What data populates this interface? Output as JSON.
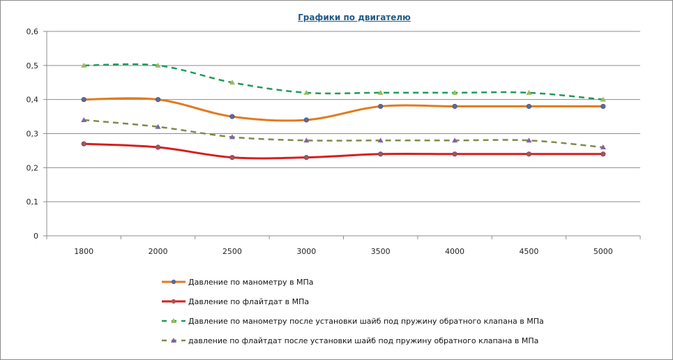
{
  "chart_data": {
    "type": "line",
    "title": "Графики по двигателю",
    "xlabel": "",
    "ylabel": "",
    "categories": [
      "1800",
      "2000",
      "2500",
      "3000",
      "3500",
      "4000",
      "4500",
      "5000"
    ],
    "ylim": [
      0,
      0.6
    ],
    "yticks": [
      "0",
      "0,1",
      "0,2",
      "0,3",
      "0,4",
      "0,5",
      "0,6"
    ],
    "ytick_values": [
      0,
      0.1,
      0.2,
      0.3,
      0.4,
      0.5,
      0.6
    ],
    "grid": true,
    "legend_position": "bottom",
    "series": [
      {
        "name": "Давление по манометру в МПа",
        "values": [
          0.4,
          0.4,
          0.35,
          0.34,
          0.38,
          0.38,
          0.38,
          0.38
        ],
        "color": "#e07b1f",
        "marker": "circle",
        "marker_color": "#5a6a9a",
        "dash": "solid",
        "width": 3
      },
      {
        "name": "Давление по флайтдат  в МПа",
        "values": [
          0.27,
          0.26,
          0.23,
          0.23,
          0.24,
          0.24,
          0.24,
          0.24
        ],
        "color": "#d81e1e",
        "marker": "circle",
        "marker_color": "#b05050",
        "dash": "solid",
        "width": 3
      },
      {
        "name": "Давление по манометру после установки шайб под пружину обратного клапана  в МПа",
        "values": [
          0.5,
          0.5,
          0.45,
          0.42,
          0.42,
          0.42,
          0.42,
          0.4
        ],
        "color": "#1f9a5a",
        "marker": "triangle",
        "marker_color": "#9bbb59",
        "dash": "dashed",
        "width": 2.5
      },
      {
        "name": "давление по флайтдат после установки шайб под пружину обратного клапана в МПа",
        "values": [
          0.34,
          0.32,
          0.29,
          0.28,
          0.28,
          0.28,
          0.28,
          0.26
        ],
        "color": "#7f8a4a",
        "marker": "triangle",
        "marker_color": "#7f63a8",
        "dash": "dashed",
        "width": 2.5
      }
    ]
  }
}
